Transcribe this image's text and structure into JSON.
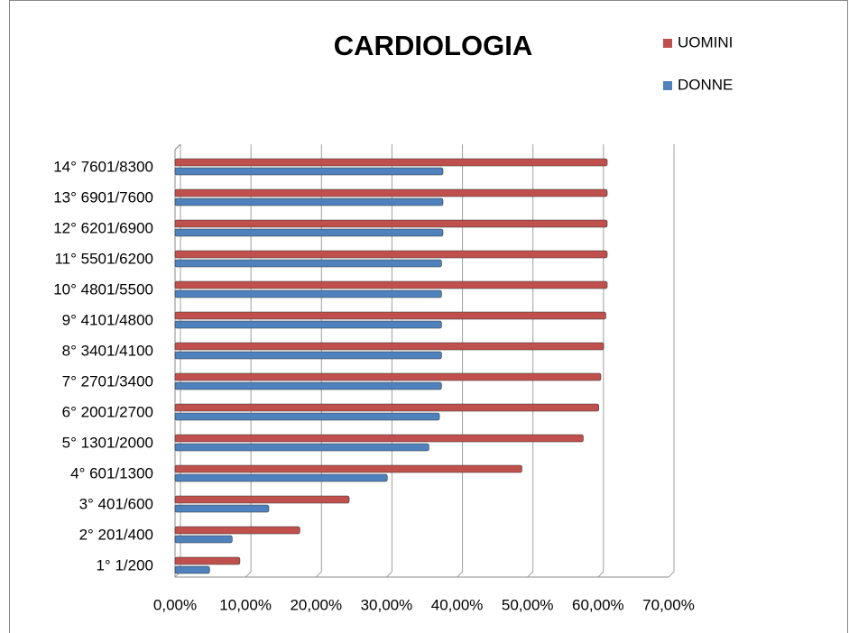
{
  "chart_data": {
    "type": "hbar",
    "title": "CARDIOLOGIA",
    "categories": [
      "1° 1/200",
      "2° 201/400",
      "3° 401/600",
      "4° 601/1300",
      "5° 1301/2000",
      "6° 2001/2700",
      "7° 2701/3400",
      "8° 3401/4100",
      "9° 4101/4800",
      "10° 4801/5500",
      "11° 5501/6200",
      "12° 6201/6900",
      "13° 6901/7600",
      "14° 7601/8300"
    ],
    "series": [
      {
        "name": "UOMINI",
        "color": "#c0504d",
        "values": [
          9.2,
          17.7,
          24.7,
          49.2,
          57.9,
          60.1,
          60.4,
          60.8,
          61.1,
          61.3,
          61.3,
          61.3,
          61.3,
          61.3
        ]
      },
      {
        "name": "DONNE",
        "color": "#4f81bd",
        "values": [
          4.9,
          8.1,
          13.3,
          30.1,
          36.0,
          37.5,
          37.8,
          37.8,
          37.8,
          37.8,
          37.8,
          38.0,
          38.0,
          38.0
        ]
      }
    ],
    "xlim": [
      0,
      70
    ],
    "xticks": [
      {
        "value": 0,
        "label": "0,00%"
      },
      {
        "value": 10,
        "label": "10,00%"
      },
      {
        "value": 20,
        "label": "20,00%"
      },
      {
        "value": 30,
        "label": "30,00%"
      },
      {
        "value": 40,
        "label": "40,00%"
      },
      {
        "value": 50,
        "label": "50,00%"
      },
      {
        "value": 60,
        "label": "60,00%"
      },
      {
        "value": 70,
        "label": "70,00%"
      }
    ],
    "grid": true
  }
}
